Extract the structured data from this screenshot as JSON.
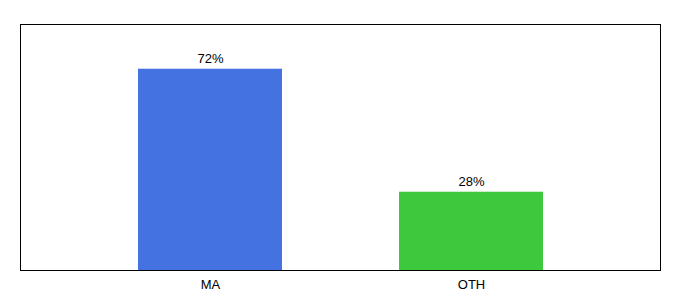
{
  "chart_data": {
    "type": "bar",
    "categories": [
      "MA",
      "OTH"
    ],
    "values": [
      72,
      28
    ],
    "value_labels": [
      "72%",
      "28%"
    ],
    "colors": [
      "#4472e0",
      "#3dc83d"
    ],
    "ylim": [
      0,
      88
    ],
    "data_labels": true,
    "tick_labels": "x"
  }
}
